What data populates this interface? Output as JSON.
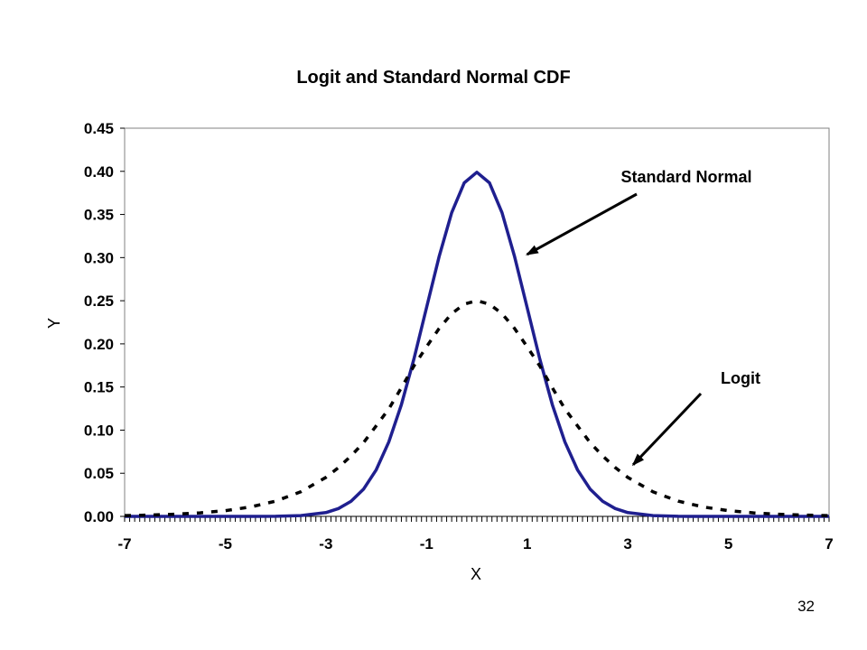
{
  "page_number": "32",
  "chart_data": {
    "type": "line",
    "title": "Logit and Standard Normal CDF",
    "xlabel": "X",
    "ylabel": "Y",
    "xlim": [
      -7,
      7
    ],
    "ylim": [
      0,
      0.45
    ],
    "x_ticks": [
      "-7",
      "-5",
      "-3",
      "-1",
      "1",
      "3",
      "5",
      "7"
    ],
    "y_ticks": [
      "0.00",
      "0.05",
      "0.10",
      "0.15",
      "0.20",
      "0.25",
      "0.30",
      "0.35",
      "0.40",
      "0.45"
    ],
    "grid": false,
    "x": [
      -7,
      -6.5,
      -6,
      -5.5,
      -5,
      -4.5,
      -4,
      -3.5,
      -3,
      -2.75,
      -2.5,
      -2.25,
      -2,
      -1.75,
      -1.5,
      -1.25,
      -1,
      -0.75,
      -0.5,
      -0.25,
      0,
      0.25,
      0.5,
      0.75,
      1,
      1.25,
      1.5,
      1.75,
      2,
      2.25,
      2.5,
      2.75,
      3,
      3.5,
      4,
      4.5,
      5,
      5.5,
      6,
      6.5,
      7
    ],
    "series": [
      {
        "name": "Standard Normal",
        "color": "#1f1f8f",
        "style": "solid",
        "values": [
          0.0,
          0.0,
          0.0,
          0.0,
          0.0,
          0.0,
          0.0001,
          0.0009,
          0.0044,
          0.0091,
          0.0175,
          0.0317,
          0.054,
          0.0863,
          0.1295,
          0.1826,
          0.242,
          0.3011,
          0.3521,
          0.3867,
          0.3989,
          0.3867,
          0.3521,
          0.3011,
          0.242,
          0.1826,
          0.1295,
          0.0863,
          0.054,
          0.0317,
          0.0175,
          0.0091,
          0.0044,
          0.0009,
          0.0001,
          0.0,
          0.0,
          0.0,
          0.0,
          0.0,
          0.0
        ]
      },
      {
        "name": "Logit",
        "color": "#000000",
        "style": "dashed",
        "values": [
          0.0009,
          0.0015,
          0.0025,
          0.0041,
          0.0066,
          0.0109,
          0.0177,
          0.0285,
          0.0452,
          0.0566,
          0.0701,
          0.0856,
          0.105,
          0.1246,
          0.1491,
          0.1745,
          0.1966,
          0.2178,
          0.235,
          0.2461,
          0.25,
          0.2461,
          0.235,
          0.2178,
          0.1966,
          0.1745,
          0.1491,
          0.1246,
          0.105,
          0.0856,
          0.0701,
          0.0566,
          0.0452,
          0.0285,
          0.0177,
          0.0109,
          0.0066,
          0.0041,
          0.0025,
          0.0015,
          0.0009
        ]
      }
    ],
    "annotations": [
      {
        "text": "Standard Normal",
        "target_series": "Standard Normal",
        "target_x": 1.0,
        "target_y": 0.31
      },
      {
        "text": "Logit",
        "target_series": "Logit",
        "target_x": 3.0,
        "target_y": 0.06
      }
    ]
  }
}
